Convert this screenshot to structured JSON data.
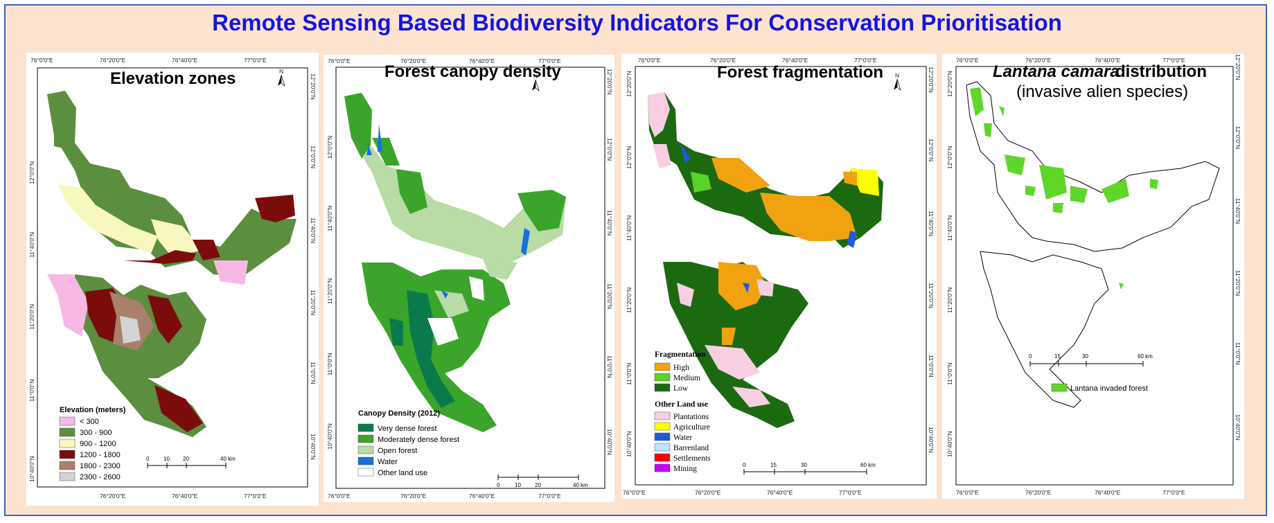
{
  "title": "Remote Sensing Based Biodiversity Indicators For Conservation Prioritisation",
  "colors": {
    "title": "#1515e0",
    "background": "#fbe3cf",
    "border": "#3a63b8"
  },
  "panels": [
    {
      "id": "elevation",
      "title": "Elevation zones",
      "top_ticks": [
        "76°0'0\"E",
        "76°20'0\"E",
        "76°40'0\"E",
        "77°0'0\"E"
      ],
      "bottom_ticks": [
        "76°20'0\"E",
        "76°40'0\"E",
        "77°0'0\"E"
      ],
      "left_ticks": [
        "12°0'0\"N",
        "11°40'0\"N",
        "11°20'0\"N",
        "11°0'0\"N",
        "10°40'0\"N"
      ],
      "right_ticks": [
        "12°20'0\"N",
        "12°0'0\"N",
        "11°40'0\"N",
        "11°20'0\"N",
        "11°0'0\"N",
        "10°40'0\"N"
      ],
      "legend_title": "Elevation (meters)",
      "legend": [
        {
          "label": "< 300",
          "color": "#f7b8e4"
        },
        {
          "label": "300 - 900",
          "color": "#5b8f3f"
        },
        {
          "label": "900 - 1200",
          "color": "#f8f7c0"
        },
        {
          "label": "1200 - 1800",
          "color": "#7c0c0c"
        },
        {
          "label": "1800 - 2300",
          "color": "#a8806c"
        },
        {
          "label": "2300 - 2600",
          "color": "#d3d3d3"
        }
      ],
      "scale": [
        "0",
        "10",
        "20",
        "40 km"
      ]
    },
    {
      "id": "canopy",
      "title": "Forest canopy density",
      "top_ticks": [
        "76°0'0\"E",
        "76°20'0\"E",
        "76°40'0\"E",
        "77°0'0\"E"
      ],
      "bottom_ticks": [
        "76°0'0\"E",
        "76°20'0\"E",
        "76°40'0\"E",
        "77°0'0\"E"
      ],
      "left_ticks": [
        "12°0'0\"N",
        "11°40'0\"N",
        "11°20'0\"N",
        "11°0'0\"N",
        "10°40'0\"N"
      ],
      "right_ticks": [
        "12°20'0\"N",
        "12°0'0\"N",
        "11°40'0\"N",
        "11°20'0\"N",
        "11°0'0\"N",
        "10°40'0\"N"
      ],
      "legend_title": "Canopy Density (2012)",
      "legend": [
        {
          "label": "Very dense forest",
          "color": "#0b7a4b"
        },
        {
          "label": "Moderately dense forest",
          "color": "#3aa52a"
        },
        {
          "label": "Open forest",
          "color": "#b9dba6"
        },
        {
          "label": "Water",
          "color": "#1a6fe0"
        },
        {
          "label": "Other land use",
          "color": "#ffffff"
        }
      ],
      "scale": [
        "0",
        "10",
        "20",
        "40 km"
      ]
    },
    {
      "id": "fragmentation",
      "title": "Forest fragmentation",
      "top_ticks": [
        "76°0'0\"E",
        "76°20'0\"E",
        "76°40'0\"E",
        "77°0'0\"E"
      ],
      "bottom_ticks": [
        "76°0'0\"E",
        "76°20'0\"E",
        "76°40'0\"E",
        "77°0'0\"E"
      ],
      "left_ticks": [
        "12°20'0\"N",
        "12°0'0\"N",
        "11°40'0\"N",
        "11°20'0\"N",
        "11°0'0\"N",
        "10°40'0\"N"
      ],
      "right_ticks": [
        "12°20'0\"N",
        "12°0'0\"N",
        "11°40'0\"N",
        "11°20'0\"N",
        "11°0'0\"N",
        "10°40'0\"N"
      ],
      "legend_title": "Fragmentation",
      "legend": [
        {
          "label": "High",
          "color": "#f3a20f"
        },
        {
          "label": "Medium",
          "color": "#5bd12a"
        },
        {
          "label": "Low",
          "color": "#1c6a10"
        }
      ],
      "legend2_title": "Other Land use",
      "legend2": [
        {
          "label": "Plantations",
          "color": "#f8cfe2"
        },
        {
          "label": "Agriculture",
          "color": "#ffff00"
        },
        {
          "label": "Water",
          "color": "#1d5be0"
        },
        {
          "label": "Barrenland",
          "color": "#bfe3f7"
        },
        {
          "label": "Settlements",
          "color": "#ff0000"
        },
        {
          "label": "Mining",
          "color": "#cc00ff"
        }
      ],
      "scale": [
        "0",
        "15",
        "30",
        "60 km"
      ]
    },
    {
      "id": "lantana",
      "title_italic": "Lantana camara",
      "title_rest": " distribution",
      "subtitle": "(invasive alien species)",
      "top_ticks": [
        "76°0'0\"E",
        "76°20'0\"E",
        "76°40'0\"E",
        "77°0'0\"E"
      ],
      "bottom_ticks": [
        "76°0'0\"E",
        "76°20'0\"E",
        "76°40'0\"E",
        "77°0'0\"E"
      ],
      "left_ticks": [
        "12°20'0\"N",
        "12°0'0\"N",
        "11°40'0\"N",
        "11°20'0\"N",
        "11°0'0\"N",
        "10°40'0\"N"
      ],
      "right_ticks": [
        "12°20'0\"N",
        "12°0'0\"N",
        "11°40'0\"N",
        "11°20'0\"N",
        "11°0'0\"N",
        "10°40'0\"N"
      ],
      "legend": [
        {
          "label": "Lantana invaded forest",
          "color": "#5fd62a"
        }
      ],
      "scale": [
        "0",
        "15",
        "30",
        "60 km"
      ]
    }
  ],
  "north_arrow_label": "N"
}
